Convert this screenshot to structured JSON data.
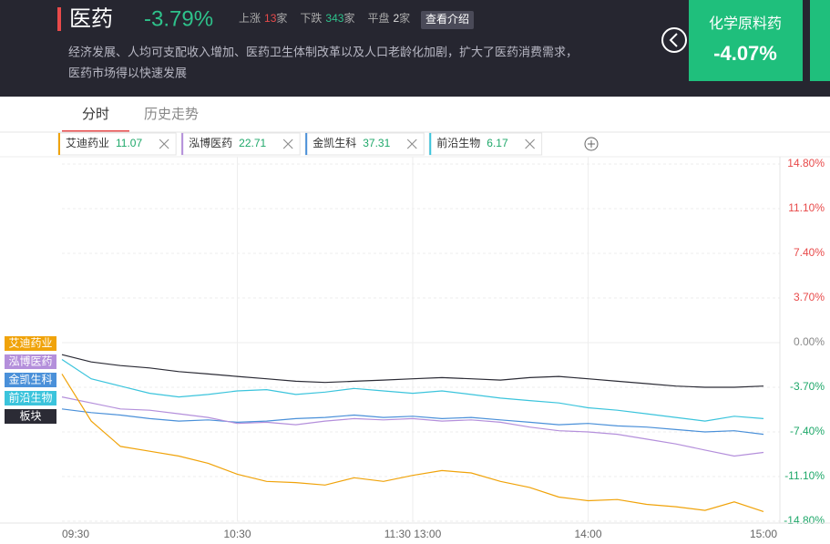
{
  "header": {
    "title": "医药",
    "change": "-3.79%",
    "stats": [
      {
        "label": "上涨",
        "count": 13,
        "unit": "家"
      },
      {
        "label": "下跌",
        "count": 343,
        "unit": "家"
      },
      {
        "label": "平盘",
        "count": 2,
        "unit": "家"
      }
    ],
    "button": "查看介绍",
    "description": [
      "经济发展、人均可支配收入增加、医药卫生体制改革以及人口老龄化加剧，扩大了医药消费需求，",
      "医药市场得以快速发展"
    ],
    "card": {
      "name": "化学原料药",
      "change": "-4.07%"
    }
  },
  "tabs": [
    "分时",
    "历史走势"
  ],
  "chart_data": {
    "type": "line",
    "x": [
      0,
      10,
      20,
      30,
      40,
      50,
      60,
      70,
      80,
      90,
      100,
      110,
      120,
      130,
      140,
      150,
      160,
      170,
      180,
      190,
      200,
      210,
      220,
      230,
      240
    ],
    "xlim": [
      0,
      240
    ],
    "xticks": [
      {
        "value": 0,
        "label": "09:30"
      },
      {
        "value": 60,
        "label": "10:30"
      },
      {
        "value": 120,
        "label": "11:30 13:00"
      },
      {
        "value": 180,
        "label": "14:00"
      },
      {
        "value": 240,
        "label": "15:00"
      }
    ],
    "ylim": [
      -14.8,
      14.8
    ],
    "yticks": [
      {
        "value": 14.8,
        "label": "14.80%"
      },
      {
        "value": 11.1,
        "label": "11.10%"
      },
      {
        "value": 7.4,
        "label": "7.40%"
      },
      {
        "value": 3.7,
        "label": "3.70%"
      },
      {
        "value": 0,
        "label": "0.00%"
      },
      {
        "value": -3.7,
        "label": "-3.70%"
      },
      {
        "value": -7.4,
        "label": "-7.40%"
      },
      {
        "value": -11.1,
        "label": "-11.10%"
      },
      {
        "value": -14.8,
        "label": "-14.80%"
      }
    ],
    "grid": true,
    "series": [
      {
        "name": "艾迪药业",
        "price": 11.07,
        "color": "#f0a30a",
        "values": [
          -2.6,
          -6.5,
          -8.6,
          -9.0,
          -9.4,
          -10.0,
          -10.9,
          -11.5,
          -11.6,
          -11.8,
          -11.2,
          -11.5,
          -11.0,
          -10.6,
          -10.8,
          -11.5,
          -12.0,
          -12.8,
          -13.1,
          -13.0,
          -13.4,
          -13.6,
          -13.9,
          -13.2,
          -14.0
        ]
      },
      {
        "name": "泓博医药",
        "price": 22.71,
        "color": "#b48fdb",
        "values": [
          -4.5,
          -5.0,
          -5.5,
          -5.6,
          -5.9,
          -6.2,
          -6.7,
          -6.6,
          -6.8,
          -6.5,
          -6.3,
          -6.4,
          -6.3,
          -6.5,
          -6.4,
          -6.6,
          -7.0,
          -7.3,
          -7.4,
          -7.6,
          -8.0,
          -8.4,
          -8.9,
          -9.4,
          -9.1
        ]
      },
      {
        "name": "金凯生科",
        "price": 37.31,
        "color": "#4a90d9",
        "values": [
          -5.5,
          -5.8,
          -6.0,
          -6.3,
          -6.5,
          -6.4,
          -6.6,
          -6.5,
          -6.3,
          -6.2,
          -6.0,
          -6.2,
          -6.1,
          -6.3,
          -6.2,
          -6.4,
          -6.6,
          -6.8,
          -6.7,
          -6.9,
          -7.0,
          -7.2,
          -7.4,
          -7.3,
          -7.6
        ]
      },
      {
        "name": "前沿生物",
        "price": 6.17,
        "color": "#3bc4dc",
        "values": [
          -1.4,
          -3.0,
          -3.6,
          -4.2,
          -4.5,
          -4.3,
          -4.0,
          -3.9,
          -4.3,
          -4.1,
          -3.8,
          -4.0,
          -4.2,
          -4.0,
          -4.3,
          -4.6,
          -4.8,
          -5.0,
          -5.4,
          -5.6,
          -5.9,
          -6.2,
          -6.5,
          -6.1,
          -6.3
        ]
      },
      {
        "name": "板块",
        "color": "#2b2b35",
        "values": [
          -1.0,
          -1.6,
          -1.9,
          -2.1,
          -2.4,
          -2.6,
          -2.8,
          -3.0,
          -3.2,
          -3.3,
          -3.2,
          -3.1,
          -3.0,
          -2.9,
          -3.0,
          -3.1,
          -2.9,
          -2.8,
          -3.0,
          -3.2,
          -3.4,
          -3.6,
          -3.7,
          -3.7,
          -3.6
        ]
      }
    ]
  }
}
